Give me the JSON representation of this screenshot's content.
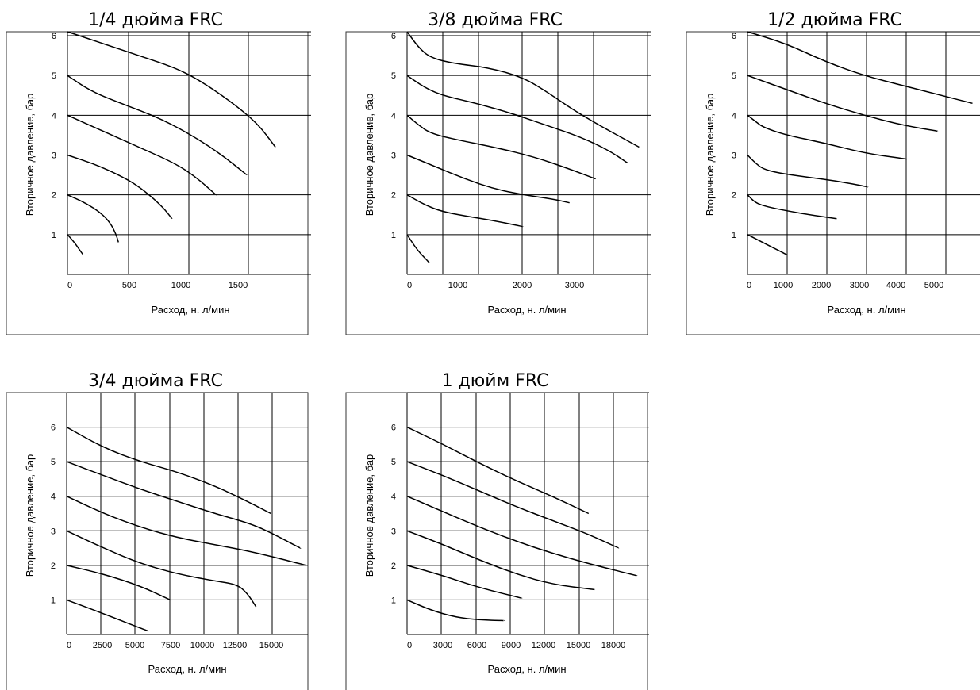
{
  "chart_data": [
    {
      "type": "line",
      "title": "1/4 дюйма FRC",
      "xlabel": "Расход, н. л/мин",
      "ylabel": "Вторичное давление, бар",
      "xticks": [
        "0",
        "500",
        "1000",
        "1500"
      ],
      "yticks": [
        "1",
        "2",
        "3",
        "4",
        "5",
        "6"
      ],
      "xlim": [
        0,
        2050
      ],
      "ylim": [
        0,
        6.1
      ],
      "grid": true,
      "series": [
        {
          "points": [
            [
              0,
              6.1
            ],
            [
              300,
              5.8
            ],
            [
              600,
              5.5
            ],
            [
              900,
              5.2
            ],
            [
              1100,
              4.9
            ],
            [
              1350,
              4.4
            ],
            [
              1600,
              3.8
            ],
            [
              1750,
              3.2
            ]
          ]
        },
        {
          "points": [
            [
              0,
              5.0
            ],
            [
              200,
              4.6
            ],
            [
              450,
              4.3
            ],
            [
              800,
              3.9
            ],
            [
              1100,
              3.4
            ],
            [
              1300,
              3.0
            ],
            [
              1510,
              2.5
            ]
          ]
        },
        {
          "points": [
            [
              0,
              4.0
            ],
            [
              300,
              3.6
            ],
            [
              600,
              3.2
            ],
            [
              900,
              2.8
            ],
            [
              1080,
              2.45
            ],
            [
              1250,
              2.0
            ]
          ]
        },
        {
          "points": [
            [
              0,
              3.0
            ],
            [
              250,
              2.75
            ],
            [
              500,
              2.4
            ],
            [
              650,
              2.1
            ],
            [
              800,
              1.7
            ],
            [
              880,
              1.4
            ]
          ]
        },
        {
          "points": [
            [
              0,
              2.0
            ],
            [
              150,
              1.8
            ],
            [
              280,
              1.55
            ],
            [
              360,
              1.3
            ],
            [
              410,
              1.0
            ],
            [
              430,
              0.8
            ]
          ]
        },
        {
          "points": [
            [
              0,
              1.0
            ],
            [
              60,
              0.8
            ],
            [
              130,
              0.5
            ]
          ]
        }
      ]
    },
    {
      "type": "line",
      "title": "3/8 дюйма FRC",
      "xlabel": "Расход, н. л/мин",
      "ylabel": "Вторичное давление, бар",
      "xticks": [
        "0",
        "1000",
        "2000",
        "3000"
      ],
      "yticks": [
        "1",
        "2",
        "3",
        "4",
        "5",
        "6"
      ],
      "xlim": [
        0,
        4200
      ],
      "ylim": [
        0,
        6.1
      ],
      "grid": true,
      "series": [
        {
          "points": [
            [
              0,
              6.1
            ],
            [
              200,
              5.7
            ],
            [
              400,
              5.45
            ],
            [
              800,
              5.3
            ],
            [
              1400,
              5.2
            ],
            [
              2000,
              4.95
            ],
            [
              2400,
              4.6
            ],
            [
              3000,
              4.0
            ],
            [
              4000,
              3.2
            ]
          ]
        },
        {
          "points": [
            [
              0,
              5.0
            ],
            [
              300,
              4.7
            ],
            [
              600,
              4.5
            ],
            [
              1200,
              4.3
            ],
            [
              1800,
              4.05
            ],
            [
              2400,
              3.75
            ],
            [
              3000,
              3.45
            ],
            [
              3500,
              3.1
            ],
            [
              3800,
              2.8
            ]
          ]
        },
        {
          "points": [
            [
              0,
              4.0
            ],
            [
              200,
              3.75
            ],
            [
              400,
              3.55
            ],
            [
              800,
              3.4
            ],
            [
              1500,
              3.2
            ],
            [
              2200,
              2.95
            ],
            [
              2800,
              2.65
            ],
            [
              3250,
              2.4
            ]
          ]
        },
        {
          "points": [
            [
              0,
              3.0
            ],
            [
              500,
              2.7
            ],
            [
              1000,
              2.4
            ],
            [
              1500,
              2.15
            ],
            [
              2000,
              2.0
            ],
            [
              2500,
              1.9
            ],
            [
              2800,
              1.8
            ]
          ]
        },
        {
          "points": [
            [
              0,
              2.0
            ],
            [
              300,
              1.75
            ],
            [
              600,
              1.58
            ],
            [
              1000,
              1.47
            ],
            [
              1500,
              1.35
            ],
            [
              2000,
              1.2
            ]
          ]
        },
        {
          "points": [
            [
              0,
              1.0
            ],
            [
              180,
              0.6
            ],
            [
              380,
              0.3
            ]
          ]
        }
      ]
    },
    {
      "type": "line",
      "title": "1/2 дюйма FRC",
      "xlabel": "Расход, н. л/мин",
      "ylabel": "Вторичное давление, бар",
      "xticks": [
        "0",
        "1000",
        "2000",
        "3000",
        "4000",
        "5000"
      ],
      "yticks": [
        "1",
        "2",
        "3",
        "4",
        "5",
        "6"
      ],
      "xlim": [
        0,
        6200
      ],
      "ylim": [
        0,
        6.1
      ],
      "grid": true,
      "series": [
        {
          "points": [
            [
              0,
              6.1
            ],
            [
              1000,
              5.8
            ],
            [
              2000,
              5.35
            ],
            [
              3000,
              5.0
            ],
            [
              4000,
              4.75
            ],
            [
              5000,
              4.5
            ],
            [
              5800,
              4.3
            ]
          ]
        },
        {
          "points": [
            [
              0,
              5.0
            ],
            [
              1000,
              4.65
            ],
            [
              2000,
              4.3
            ],
            [
              3000,
              4.0
            ],
            [
              4000,
              3.75
            ],
            [
              4900,
              3.6
            ]
          ]
        },
        {
          "points": [
            [
              0,
              4.0
            ],
            [
              200,
              3.85
            ],
            [
              400,
              3.7
            ],
            [
              1000,
              3.5
            ],
            [
              2000,
              3.3
            ],
            [
              3000,
              3.05
            ],
            [
              4100,
              2.9
            ]
          ]
        },
        {
          "points": [
            [
              0,
              3.0
            ],
            [
              200,
              2.8
            ],
            [
              400,
              2.65
            ],
            [
              800,
              2.55
            ],
            [
              1500,
              2.45
            ],
            [
              2300,
              2.35
            ],
            [
              3100,
              2.2
            ]
          ]
        },
        {
          "points": [
            [
              0,
              2.0
            ],
            [
              200,
              1.8
            ],
            [
              500,
              1.7
            ],
            [
              1000,
              1.6
            ],
            [
              1600,
              1.5
            ],
            [
              2300,
              1.4
            ]
          ]
        },
        {
          "points": [
            [
              0,
              1.0
            ],
            [
              500,
              0.75
            ],
            [
              1000,
              0.5
            ]
          ]
        }
      ]
    },
    {
      "type": "line",
      "title": "3/4 дюйма FRC",
      "xlabel": "Расход, н. л/мин",
      "ylabel": "Вторичное давление, бар",
      "xticks": [
        "0",
        "2500",
        "5000",
        "7500",
        "10000",
        "12500",
        "15000"
      ],
      "yticks": [
        "1",
        "2",
        "3",
        "4",
        "5",
        "6"
      ],
      "xlim": [
        0,
        16300
      ],
      "ylim": [
        0,
        7
      ],
      "grid": true,
      "series": [
        {
          "points": [
            [
              0,
              6.0
            ],
            [
              2500,
              5.4
            ],
            [
              5000,
              5.0
            ],
            [
              7500,
              4.7
            ],
            [
              10000,
              4.3
            ],
            [
              12000,
              3.9
            ],
            [
              13800,
              3.5
            ]
          ]
        },
        {
          "points": [
            [
              0,
              5.0
            ],
            [
              2500,
              4.6
            ],
            [
              5000,
              4.2
            ],
            [
              7500,
              3.85
            ],
            [
              10000,
              3.5
            ],
            [
              12500,
              3.2
            ],
            [
              14000,
              2.9
            ],
            [
              15800,
              2.5
            ]
          ]
        },
        {
          "points": [
            [
              0,
              4.0
            ],
            [
              2500,
              3.5
            ],
            [
              5000,
              3.1
            ],
            [
              7500,
              2.8
            ],
            [
              10000,
              2.6
            ],
            [
              12500,
              2.4
            ],
            [
              16200,
              2.0
            ]
          ]
        },
        {
          "points": [
            [
              0,
              3.0
            ],
            [
              2500,
              2.5
            ],
            [
              5000,
              2.05
            ],
            [
              7500,
              1.75
            ],
            [
              10000,
              1.55
            ],
            [
              11500,
              1.45
            ],
            [
              12200,
              1.2
            ],
            [
              12800,
              0.8
            ]
          ]
        },
        {
          "points": [
            [
              0,
              2.0
            ],
            [
              2500,
              1.75
            ],
            [
              5000,
              1.4
            ],
            [
              7000,
              1.0
            ]
          ]
        },
        {
          "points": [
            [
              0,
              1.0
            ],
            [
              2500,
              0.6
            ],
            [
              5500,
              0.1
            ]
          ]
        }
      ]
    },
    {
      "type": "line",
      "title": "1 дюйм FRC",
      "xlabel": "Расход, н. л/мин",
      "ylabel": "Вторичное давление, бар",
      "xticks": [
        "0",
        "3000",
        "6000",
        "9000",
        "12000",
        "15000",
        "18000"
      ],
      "yticks": [
        "1",
        "2",
        "3",
        "4",
        "5",
        "6"
      ],
      "xlim": [
        0,
        20000
      ],
      "ylim": [
        0,
        7
      ],
      "grid": true,
      "series": [
        {
          "points": [
            [
              0,
              6.0
            ],
            [
              3000,
              5.5
            ],
            [
              6000,
              4.95
            ],
            [
              9000,
              4.45
            ],
            [
              12000,
              4.0
            ],
            [
              15000,
              3.5
            ]
          ]
        },
        {
          "points": [
            [
              0,
              5.0
            ],
            [
              3000,
              4.6
            ],
            [
              6000,
              4.15
            ],
            [
              9000,
              3.7
            ],
            [
              12000,
              3.3
            ],
            [
              15000,
              2.9
            ],
            [
              17500,
              2.5
            ]
          ]
        },
        {
          "points": [
            [
              0,
              4.0
            ],
            [
              3000,
              3.55
            ],
            [
              6000,
              3.1
            ],
            [
              9000,
              2.7
            ],
            [
              12000,
              2.35
            ],
            [
              15000,
              2.05
            ],
            [
              19000,
              1.7
            ]
          ]
        },
        {
          "points": [
            [
              0,
              3.0
            ],
            [
              3000,
              2.6
            ],
            [
              6000,
              2.15
            ],
            [
              9000,
              1.75
            ],
            [
              12000,
              1.45
            ],
            [
              15500,
              1.3
            ]
          ]
        },
        {
          "points": [
            [
              0,
              2.0
            ],
            [
              3000,
              1.7
            ],
            [
              6000,
              1.35
            ],
            [
              9500,
              1.05
            ]
          ]
        },
        {
          "points": [
            [
              0,
              1.0
            ],
            [
              2000,
              0.7
            ],
            [
              4000,
              0.5
            ],
            [
              6000,
              0.42
            ],
            [
              8000,
              0.4
            ]
          ]
        }
      ]
    }
  ]
}
